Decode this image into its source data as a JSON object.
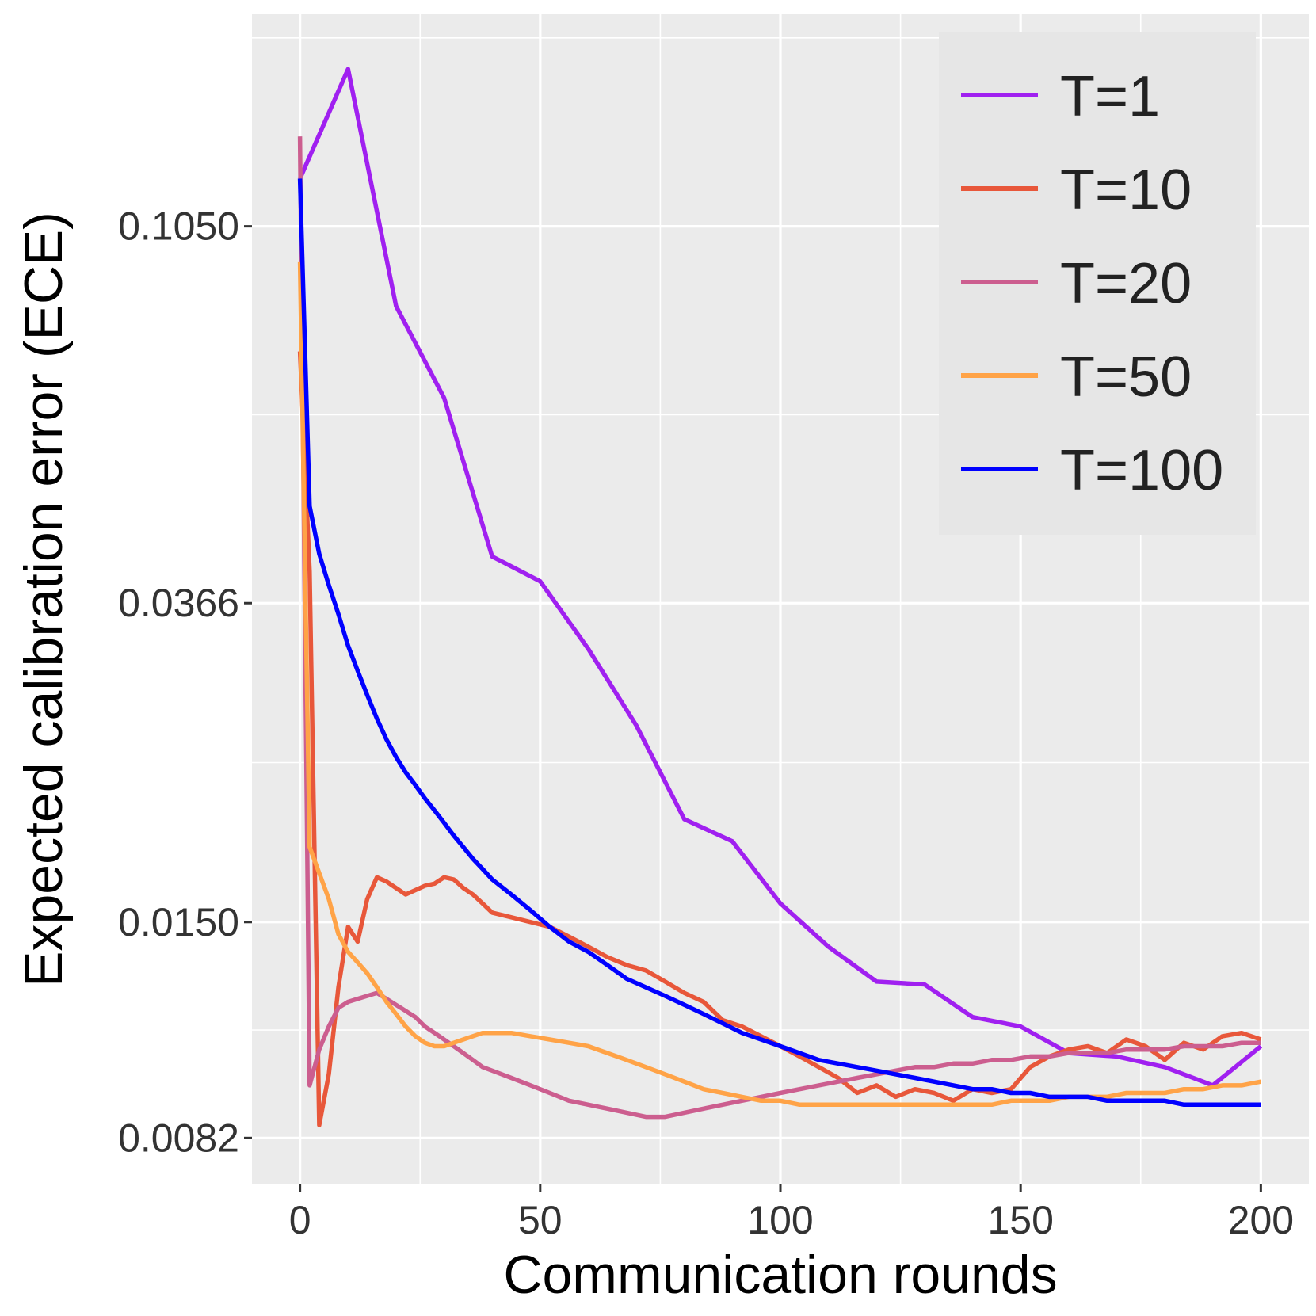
{
  "chart_data": {
    "type": "line",
    "title": "",
    "xlabel": "Communication rounds",
    "ylabel": "Expected calibration error (ECE)",
    "xlim": [
      -10,
      210
    ],
    "ylim_log": [
      0.0072,
      0.19
    ],
    "y_scale": "log",
    "x_ticks": [
      0,
      50,
      100,
      150,
      200
    ],
    "x_tick_labels": [
      "0",
      "50",
      "100",
      "150",
      "200"
    ],
    "y_ticks": [
      0.105,
      0.0366,
      0.015,
      0.0082
    ],
    "y_tick_labels": [
      "0.1050",
      "0.0366",
      "0.0150",
      "0.0082"
    ],
    "grid": true,
    "legend_position": "top-right",
    "series": [
      {
        "name": "T=1",
        "label": "T=1",
        "color": "#a020f0",
        "x": [
          0,
          10,
          20,
          30,
          40,
          50,
          60,
          70,
          80,
          90,
          100,
          110,
          120,
          130,
          140,
          150,
          160,
          170,
          180,
          190,
          200
        ],
        "y": [
          0.12,
          0.163,
          0.084,
          0.065,
          0.0417,
          0.0389,
          0.0322,
          0.026,
          0.02,
          0.0188,
          0.0158,
          0.014,
          0.0127,
          0.0126,
          0.0115,
          0.0112,
          0.0104,
          0.0103,
          0.01,
          0.0095,
          0.0106
        ]
      },
      {
        "name": "T=10",
        "label": "T=10",
        "color": "#e8573a",
        "x": [
          0,
          2,
          4,
          6,
          8,
          10,
          12,
          14,
          16,
          18,
          20,
          22,
          24,
          26,
          28,
          30,
          32,
          34,
          36,
          38,
          40,
          44,
          48,
          52,
          56,
          60,
          64,
          68,
          72,
          76,
          80,
          84,
          88,
          92,
          96,
          100,
          104,
          108,
          112,
          116,
          120,
          124,
          128,
          132,
          136,
          140,
          144,
          148,
          152,
          156,
          160,
          164,
          168,
          172,
          176,
          180,
          184,
          188,
          192,
          196,
          200
        ],
        "y": [
          0.074,
          0.04,
          0.0085,
          0.0098,
          0.0125,
          0.0148,
          0.0142,
          0.016,
          0.017,
          0.0168,
          0.0165,
          0.0162,
          0.0164,
          0.0166,
          0.0167,
          0.017,
          0.0169,
          0.0165,
          0.0162,
          0.0158,
          0.0154,
          0.0152,
          0.015,
          0.0148,
          0.0144,
          0.014,
          0.0136,
          0.0133,
          0.0131,
          0.0127,
          0.0123,
          0.012,
          0.0114,
          0.0112,
          0.0109,
          0.0106,
          0.0103,
          0.01,
          0.0097,
          0.0093,
          0.0095,
          0.0092,
          0.0094,
          0.0093,
          0.0091,
          0.0094,
          0.0093,
          0.0094,
          0.01,
          0.0103,
          0.0105,
          0.0106,
          0.0104,
          0.0108,
          0.0106,
          0.0102,
          0.0107,
          0.0105,
          0.0109,
          0.011,
          0.0108
        ]
      },
      {
        "name": "T=20",
        "label": "T=20",
        "color": "#cc5e8f",
        "x": [
          0,
          2,
          4,
          6,
          8,
          10,
          12,
          14,
          16,
          18,
          20,
          22,
          24,
          26,
          28,
          30,
          32,
          34,
          36,
          38,
          40,
          44,
          48,
          52,
          56,
          60,
          64,
          68,
          72,
          76,
          80,
          84,
          88,
          92,
          96,
          100,
          104,
          108,
          112,
          116,
          120,
          124,
          128,
          132,
          136,
          140,
          144,
          148,
          152,
          156,
          160,
          164,
          168,
          172,
          176,
          180,
          184,
          188,
          192,
          196,
          200
        ],
        "y": [
          0.135,
          0.0095,
          0.0105,
          0.0112,
          0.0118,
          0.012,
          0.0121,
          0.0122,
          0.0123,
          0.0121,
          0.0119,
          0.0117,
          0.0115,
          0.0112,
          0.011,
          0.0108,
          0.0106,
          0.0104,
          0.0102,
          0.01,
          0.0099,
          0.0097,
          0.0095,
          0.0093,
          0.0091,
          0.009,
          0.0089,
          0.0088,
          0.0087,
          0.0087,
          0.0088,
          0.0089,
          0.009,
          0.0091,
          0.0092,
          0.0093,
          0.0094,
          0.0095,
          0.0096,
          0.0097,
          0.0098,
          0.0099,
          0.01,
          0.01,
          0.0101,
          0.0101,
          0.0102,
          0.0102,
          0.0103,
          0.0103,
          0.0104,
          0.0104,
          0.0104,
          0.0105,
          0.0105,
          0.0105,
          0.0106,
          0.0106,
          0.0106,
          0.0107,
          0.0107
        ]
      },
      {
        "name": "T=50",
        "label": "T=50",
        "color": "#ffa347",
        "x": [
          0,
          2,
          4,
          6,
          8,
          10,
          12,
          14,
          16,
          18,
          20,
          22,
          24,
          26,
          28,
          30,
          32,
          34,
          36,
          38,
          40,
          44,
          48,
          52,
          56,
          60,
          64,
          68,
          72,
          76,
          80,
          84,
          88,
          92,
          96,
          100,
          104,
          108,
          112,
          116,
          120,
          124,
          128,
          132,
          136,
          140,
          144,
          148,
          152,
          156,
          160,
          164,
          168,
          172,
          176,
          180,
          184,
          188,
          192,
          196,
          200
        ],
        "y": [
          0.095,
          0.0185,
          0.0172,
          0.016,
          0.0145,
          0.0138,
          0.0134,
          0.013,
          0.0125,
          0.012,
          0.0116,
          0.0112,
          0.0109,
          0.0107,
          0.0106,
          0.0106,
          0.0107,
          0.0108,
          0.0109,
          0.011,
          0.011,
          0.011,
          0.0109,
          0.0108,
          0.0107,
          0.0106,
          0.0104,
          0.0102,
          0.01,
          0.0098,
          0.0096,
          0.0094,
          0.0093,
          0.0092,
          0.0091,
          0.0091,
          0.009,
          0.009,
          0.009,
          0.009,
          0.009,
          0.009,
          0.009,
          0.009,
          0.009,
          0.009,
          0.009,
          0.0091,
          0.0091,
          0.0091,
          0.0092,
          0.0092,
          0.0092,
          0.0093,
          0.0093,
          0.0093,
          0.0094,
          0.0094,
          0.0095,
          0.0095,
          0.0096
        ]
      },
      {
        "name": "T=100",
        "label": "T=100",
        "color": "#0000ff",
        "x": [
          0,
          2,
          4,
          6,
          8,
          10,
          12,
          14,
          16,
          18,
          20,
          22,
          24,
          26,
          28,
          30,
          32,
          34,
          36,
          38,
          40,
          44,
          48,
          52,
          56,
          60,
          64,
          68,
          72,
          76,
          80,
          84,
          88,
          92,
          96,
          100,
          104,
          108,
          112,
          116,
          120,
          124,
          128,
          132,
          136,
          140,
          144,
          148,
          152,
          156,
          160,
          164,
          168,
          172,
          176,
          180,
          184,
          188,
          192,
          196,
          200
        ],
        "y": [
          0.12,
          0.048,
          0.042,
          0.0385,
          0.0355,
          0.0325,
          0.0303,
          0.0283,
          0.0265,
          0.025,
          0.0238,
          0.0228,
          0.022,
          0.0212,
          0.0205,
          0.0198,
          0.0191,
          0.0185,
          0.0179,
          0.0174,
          0.0169,
          0.0162,
          0.0155,
          0.0148,
          0.0142,
          0.0138,
          0.0133,
          0.0128,
          0.0125,
          0.0122,
          0.0119,
          0.0116,
          0.0113,
          0.011,
          0.0108,
          0.0106,
          0.0104,
          0.0102,
          0.0101,
          0.01,
          0.0099,
          0.0098,
          0.0097,
          0.0096,
          0.0095,
          0.0094,
          0.0094,
          0.0093,
          0.0093,
          0.0092,
          0.0092,
          0.0092,
          0.0091,
          0.0091,
          0.0091,
          0.0091,
          0.009,
          0.009,
          0.009,
          0.009,
          0.009
        ]
      }
    ]
  }
}
